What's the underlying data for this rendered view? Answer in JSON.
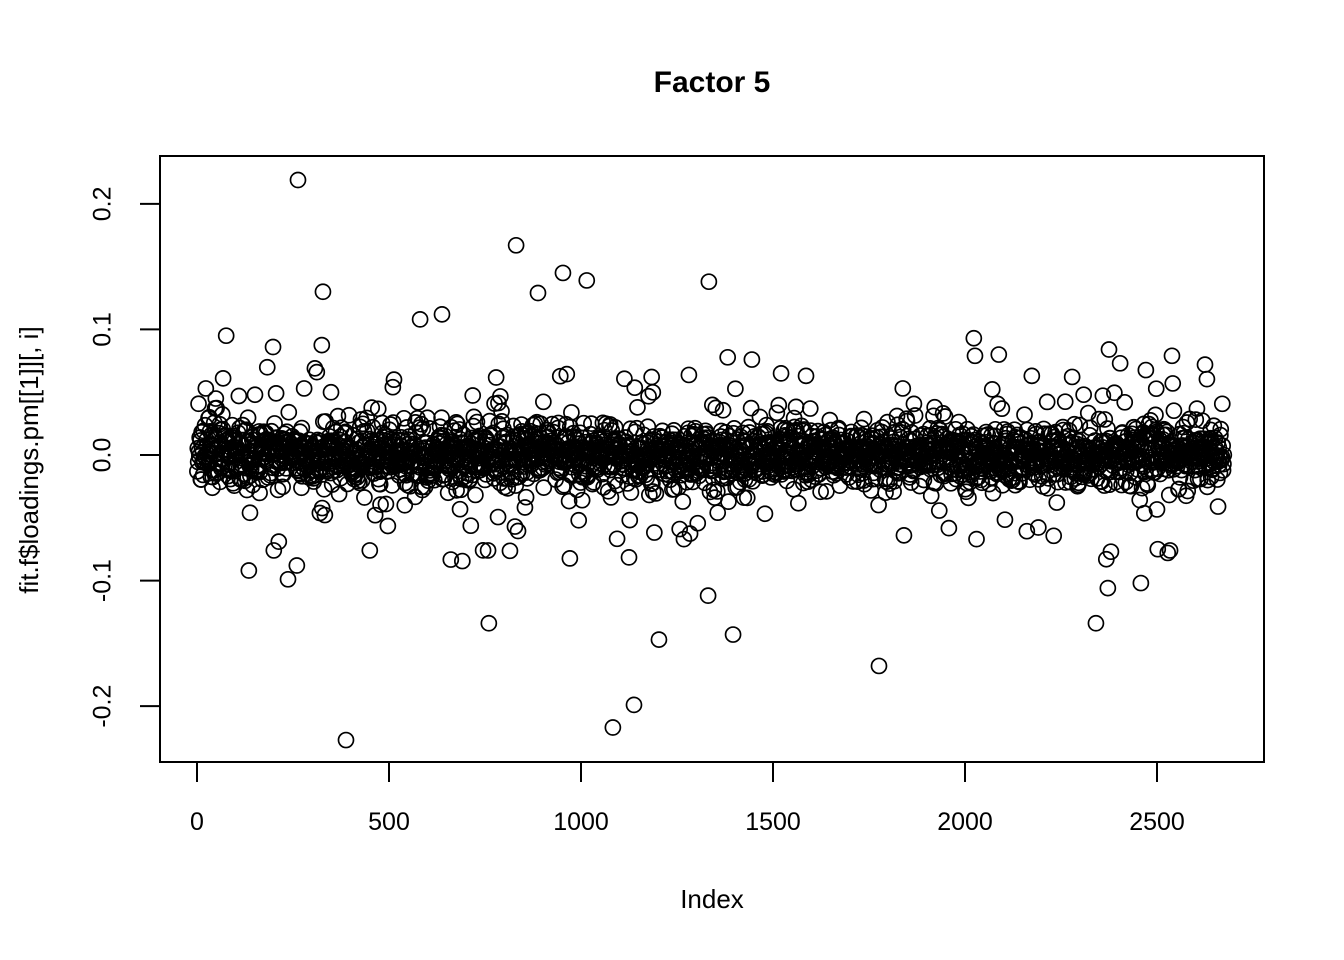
{
  "chart_data": {
    "type": "scatter",
    "title": "Factor 5",
    "xlabel": "Index",
    "ylabel": "fit.f$loadings.pm[[1]][, i]",
    "x_ticks": [
      0,
      500,
      1000,
      1500,
      2000,
      2500
    ],
    "x_tick_labels": [
      "0",
      "500",
      "1000",
      "1500",
      "2000",
      "2500"
    ],
    "y_ticks": [
      0.2,
      0.1,
      0.0,
      -0.1,
      -0.2
    ],
    "y_tick_labels": [
      "0.2",
      "0.1",
      "0.0",
      "-0.1",
      "-0.2"
    ],
    "xlim": [
      -106,
      2781
    ],
    "ylim": [
      -0.2446,
      0.2382
    ],
    "grid": false,
    "legend": "none",
    "marker": "open-circle",
    "marker_color": "#000000",
    "background_color": "#ffffff",
    "n_points": 2674,
    "y_extent_observed": [
      -0.227,
      0.219
    ],
    "dense_band": {
      "description": "values concentrated near 0",
      "core_frac": 0.84,
      "core_sd": 0.0115,
      "mid_frac": 0.12,
      "mid_sd": 0.026,
      "wide_frac": 0.04,
      "wide_sd": 0.048,
      "clip": 0.088,
      "seed": 20
    },
    "outliers": [
      [
        263,
        0.219
      ],
      [
        831,
        0.167
      ],
      [
        953,
        0.145
      ],
      [
        1015,
        0.139
      ],
      [
        1333,
        0.138
      ],
      [
        328,
        0.13
      ],
      [
        888,
        0.129
      ],
      [
        638,
        0.112
      ],
      [
        581,
        0.108
      ],
      [
        76,
        0.095
      ],
      [
        2023,
        0.093
      ],
      [
        2375,
        0.084
      ],
      [
        2088,
        0.08
      ],
      [
        2026,
        0.079
      ],
      [
        2539,
        0.079
      ],
      [
        2404,
        0.073
      ],
      [
        307,
        0.069
      ],
      [
        312,
        0.066
      ],
      [
        1521,
        0.065
      ],
      [
        1586,
        0.063
      ],
      [
        2174,
        0.063
      ],
      [
        513,
        0.06
      ],
      [
        2541,
        0.057
      ],
      [
        510,
        0.054
      ],
      [
        23,
        0.053
      ],
      [
        279,
        0.053
      ],
      [
        1838,
        0.053
      ],
      [
        151,
        0.048
      ],
      [
        109,
        0.047
      ],
      [
        388,
        -0.227
      ],
      [
        1083,
        -0.217
      ],
      [
        1138,
        -0.199
      ],
      [
        1776,
        -0.168
      ],
      [
        1203,
        -0.147
      ],
      [
        1396,
        -0.143
      ],
      [
        760,
        -0.134
      ],
      [
        2341,
        -0.134
      ],
      [
        1331,
        -0.112
      ],
      [
        2372,
        -0.106
      ],
      [
        2458,
        -0.102
      ],
      [
        237,
        -0.099
      ],
      [
        135,
        -0.092
      ],
      [
        260,
        -0.088
      ],
      [
        2368,
        -0.083
      ],
      [
        2528,
        -0.078
      ],
      [
        2380,
        -0.077
      ],
      [
        200,
        -0.076
      ],
      [
        450,
        -0.076
      ],
      [
        758,
        -0.076
      ],
      [
        2534,
        -0.076
      ],
      [
        2502,
        -0.075
      ],
      [
        213,
        -0.069
      ],
      [
        1268,
        -0.067
      ],
      [
        2030,
        -0.067
      ],
      [
        1841,
        -0.064
      ],
      [
        828,
        -0.057
      ]
    ]
  }
}
